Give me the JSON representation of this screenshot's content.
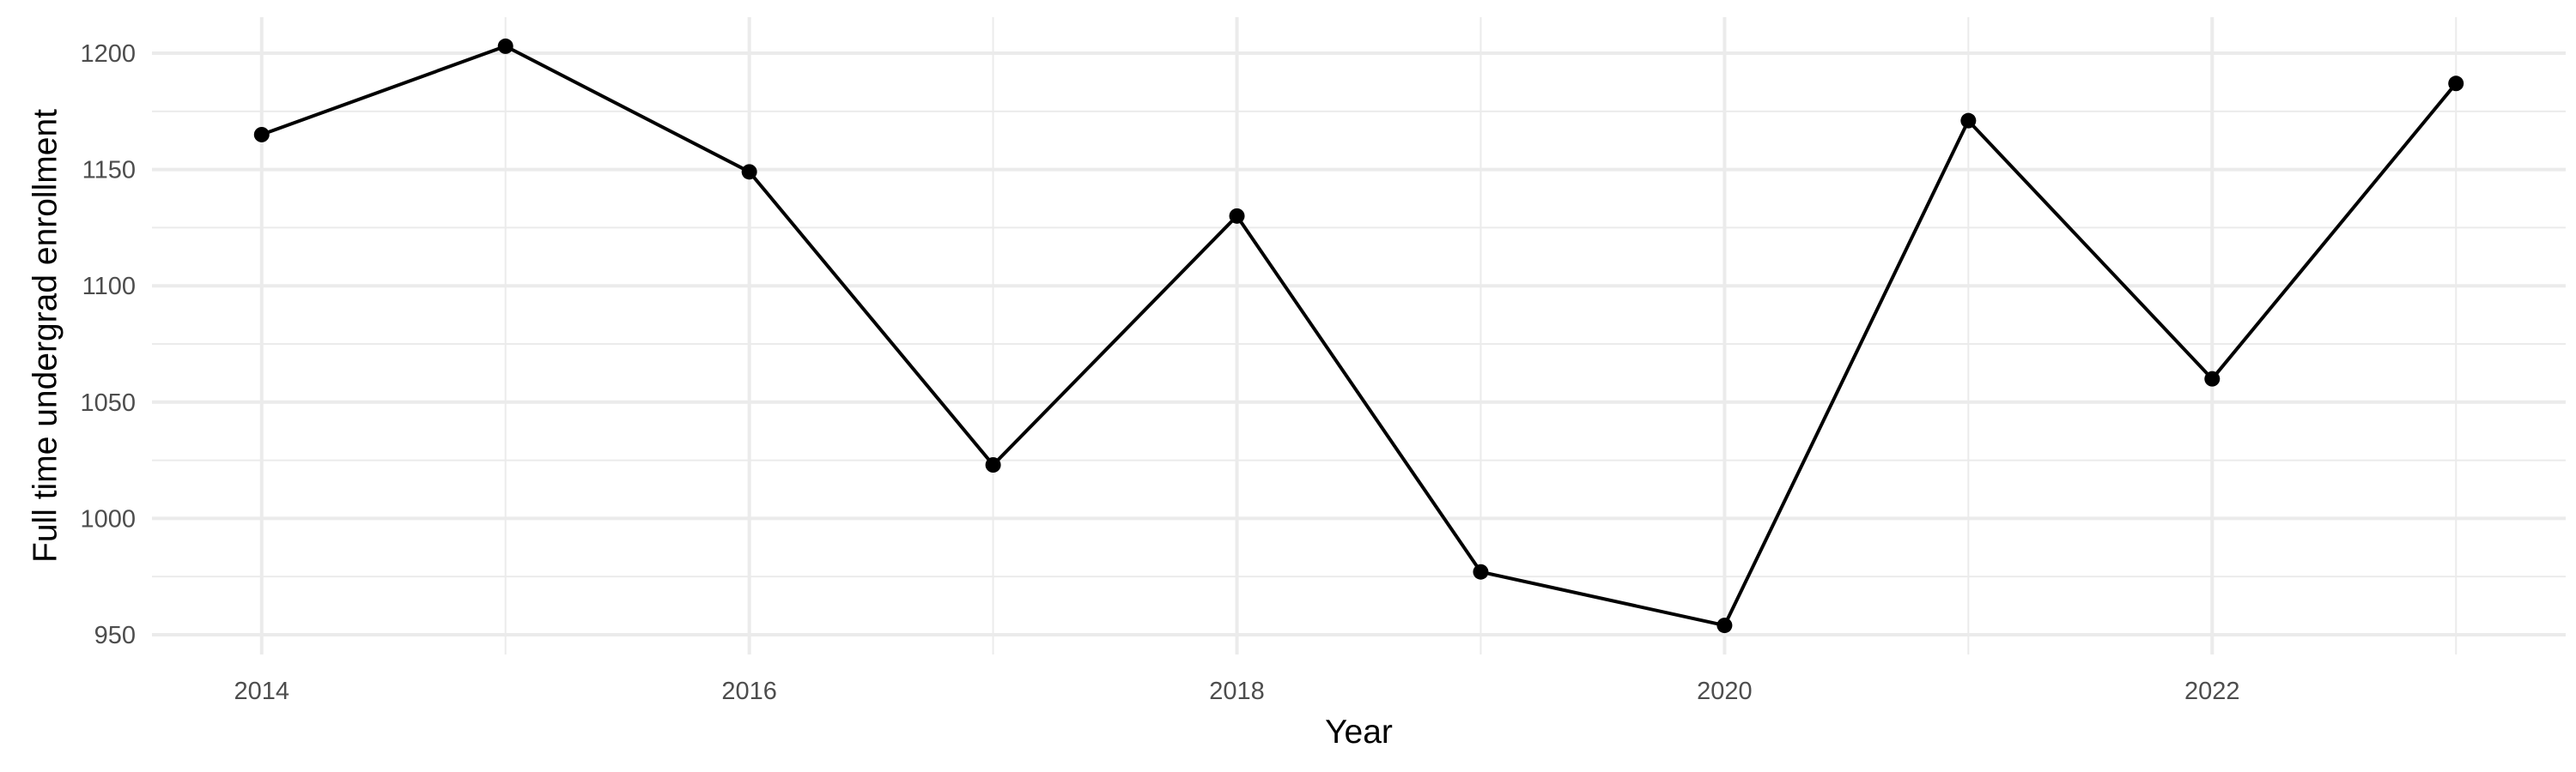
{
  "chart_data": {
    "type": "line",
    "xlabel": "Year",
    "ylabel": "Full time undergrad enrollment",
    "x": [
      2014,
      2015,
      2016,
      2017,
      2018,
      2019,
      2020,
      2021,
      2022,
      2023
    ],
    "series": [
      {
        "values": [
          1165,
          1203,
          1149,
          1023,
          1130,
          977,
          954,
          1171,
          1060,
          1187
        ]
      }
    ],
    "xlim": [
      2013.55,
      2023.45
    ],
    "ylim": [
      941.5,
      1215.5
    ],
    "x_ticks": [
      2014,
      2016,
      2018,
      2020,
      2022
    ],
    "x_tick_labels": [
      "2014",
      "2016",
      "2018",
      "2020",
      "2022"
    ],
    "x_minor_ticks": [
      2015,
      2017,
      2019,
      2021,
      2023
    ],
    "y_ticks": [
      950,
      1000,
      1050,
      1100,
      1150,
      1200
    ],
    "y_tick_labels": [
      "950",
      "1000",
      "1050",
      "1100",
      "1150",
      "1200"
    ],
    "y_minor_ticks": [
      975,
      1025,
      1075,
      1125,
      1175
    ],
    "grid": true,
    "legend": "none",
    "colors": {
      "line": "#000000",
      "point": "#000000",
      "grid": "#ebebeb",
      "tick_text": "#4d4d4d",
      "background": "#ffffff"
    }
  }
}
